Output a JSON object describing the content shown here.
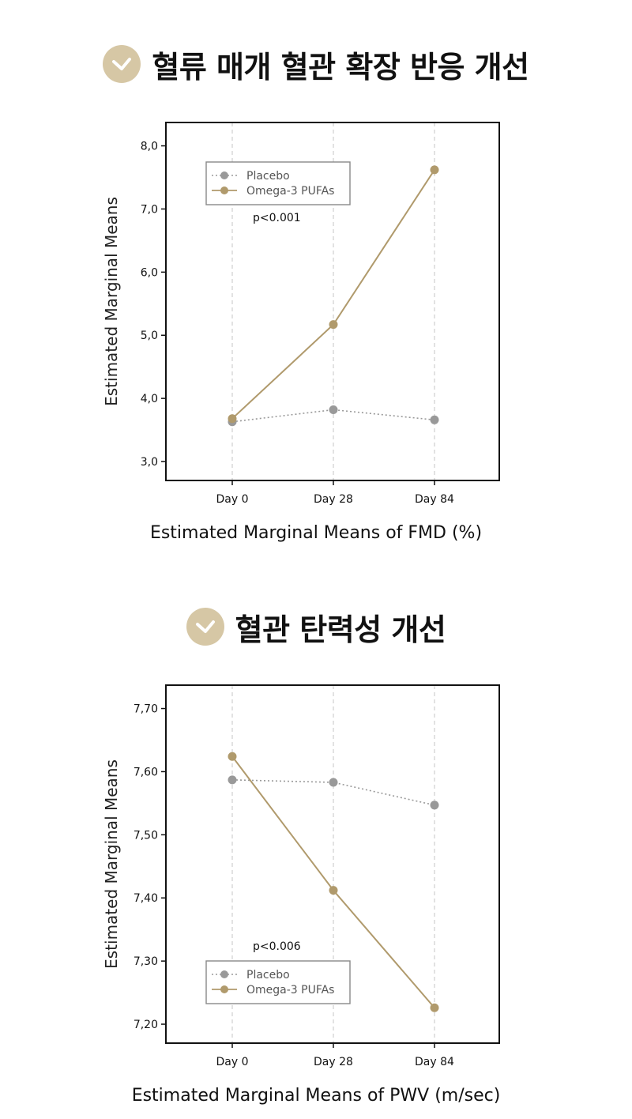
{
  "colors": {
    "accent": "#d6c7a5",
    "placebo": "#999999",
    "omega": "#b09a6c"
  },
  "sections": [
    {
      "heading": "혈류 매개 혈관 확장 반응 개선",
      "icon": "check-icon"
    },
    {
      "heading": "혈관 탄력성 개선",
      "icon": "check-icon"
    }
  ],
  "chart_data": [
    {
      "type": "line",
      "categories": [
        "Day 0",
        "Day 28",
        "Day 84"
      ],
      "series": [
        {
          "name": "Placebo",
          "values": [
            3.63,
            3.82,
            3.66
          ],
          "style": "dotted"
        },
        {
          "name": "Omega-3 PUFAs",
          "values": [
            3.68,
            5.17,
            7.62
          ],
          "style": "solid"
        }
      ],
      "ylabel": "Estimated Marginal Means",
      "xlabel": "Estimated Marginal Means of FMD (%)",
      "yticks": [
        "3,0",
        "4,0",
        "5,0",
        "6,0",
        "7,0",
        "8,0"
      ],
      "ytick_values": [
        3.0,
        4.0,
        5.0,
        6.0,
        7.0,
        8.0
      ],
      "ylim": [
        2.7,
        8.37
      ],
      "annotation": "p<0.001",
      "legend": "top-left",
      "grid": "vertical dashed"
    },
    {
      "type": "line",
      "categories": [
        "Day 0",
        "Day 28",
        "Day 84"
      ],
      "series": [
        {
          "name": "Placebo",
          "values": [
            7.587,
            7.583,
            7.547
          ],
          "style": "dotted"
        },
        {
          "name": "Omega-3 PUFAs",
          "values": [
            7.624,
            7.412,
            7.226
          ],
          "style": "solid"
        }
      ],
      "ylabel": "Estimated Marginal Means",
      "xlabel": "Estimated Marginal Means of PWV (m/sec)",
      "yticks": [
        "7,20",
        "7,30",
        "7,40",
        "7,50",
        "7,60",
        "7,70"
      ],
      "ytick_values": [
        7.2,
        7.3,
        7.4,
        7.5,
        7.6,
        7.7
      ],
      "ylim": [
        7.17,
        7.737
      ],
      "annotation": "p<0.006",
      "legend": "bottom-left",
      "grid": "vertical dashed"
    }
  ]
}
